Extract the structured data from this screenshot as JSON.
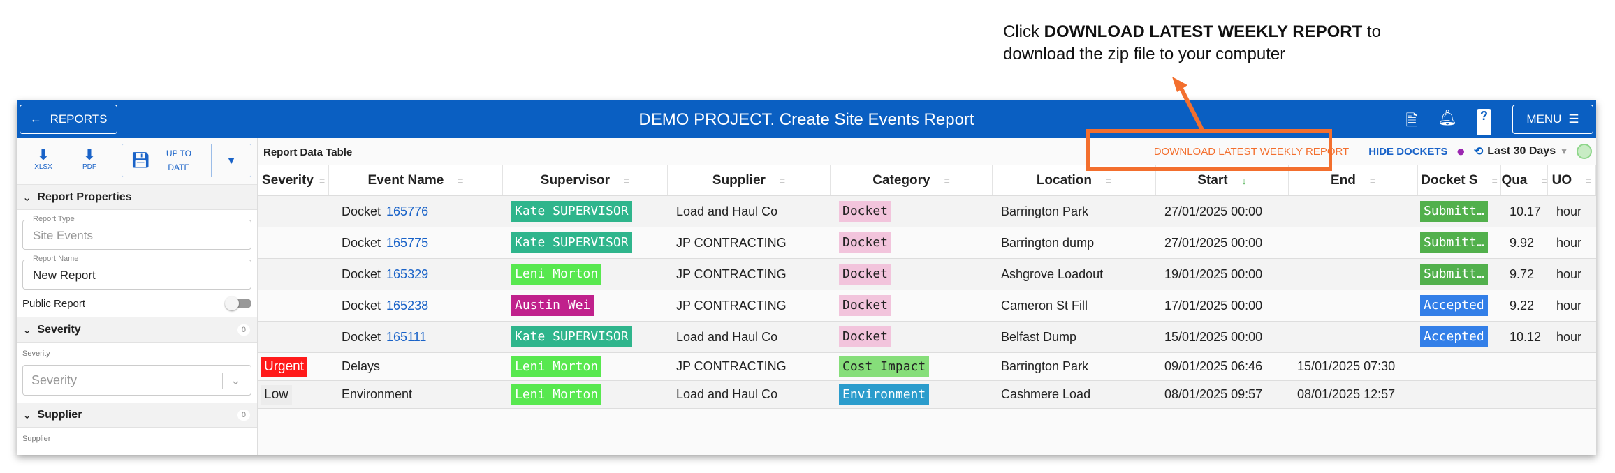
{
  "annotation": {
    "prefix": "Click ",
    "bold": "DOWNLOAD LATEST WEEKLY REPORT",
    "suffix": " to",
    "line2": "download the zip file to your computer",
    "color": "#f36f2e"
  },
  "topbar": {
    "back_label": "REPORTS",
    "title": "DEMO PROJECT. Create Site Events Report",
    "menu_label": "MENU",
    "icons": [
      "document-check-icon",
      "bell-icon",
      "help-icon",
      "hamburger-icon"
    ],
    "color": "#0a5fc2"
  },
  "sidebar": {
    "xlsx": "XLSX",
    "pdf": "PDF",
    "save_label": "UP TO DATE",
    "report_properties": "Report Properties",
    "report_type_label": "Report Type",
    "report_type_value": "Site Events",
    "report_name_label": "Report Name",
    "report_name_value": "New Report",
    "public_report": "Public Report",
    "public_report_on": false,
    "severity_section": "Severity",
    "severity_count": "0",
    "severity_label": "Severity",
    "severity_placeholder": "Severity",
    "supplier_section": "Supplier",
    "supplier_count": "0",
    "supplier_label": "Supplier"
  },
  "main": {
    "title": "Report Data Table",
    "download_weekly": "DOWNLOAD LATEST WEEKLY REPORT",
    "hide_dockets": "HIDE DOCKETS",
    "date_range": "Last 30 Days",
    "columns": [
      "Severity",
      "Event Name",
      "Supervisor",
      "Supplier",
      "Category",
      "Location",
      "Start",
      "End",
      "Docket S",
      "Qua",
      "UO"
    ],
    "rows": [
      {
        "severity": "",
        "event": "Docket",
        "docket": "165776",
        "supervisor": "Kate SUPERVISOR",
        "sup_color": "#2fb58c",
        "sup_text": "#fff",
        "supplier": "Load and Haul Co",
        "category": "Docket",
        "cat_color": "#f2c4dc",
        "cat_text": "#222",
        "location": "Barrington Park",
        "start": "27/01/2025 00:00",
        "end": "",
        "status": "Submitt…",
        "status_color": "#52b04c",
        "qty": "10.17",
        "uom": "hour"
      },
      {
        "severity": "",
        "event": "Docket",
        "docket": "165775",
        "supervisor": "Kate SUPERVISOR",
        "sup_color": "#2fb58c",
        "sup_text": "#fff",
        "supplier": "JP CONTRACTING",
        "category": "Docket",
        "cat_color": "#f2c4dc",
        "cat_text": "#222",
        "location": "Barrington dump",
        "start": "27/01/2025 00:00",
        "end": "",
        "status": "Submitt…",
        "status_color": "#52b04c",
        "qty": "9.92",
        "uom": "hour"
      },
      {
        "severity": "",
        "event": "Docket",
        "docket": "165329",
        "supervisor": "Leni Morton",
        "sup_color": "#58e84f",
        "sup_text": "#fff",
        "supplier": "JP CONTRACTING",
        "category": "Docket",
        "cat_color": "#f2c4dc",
        "cat_text": "#222",
        "location": "Ashgrove Loadout",
        "start": "19/01/2025 00:00",
        "end": "",
        "status": "Submitt…",
        "status_color": "#52b04c",
        "qty": "9.72",
        "uom": "hour"
      },
      {
        "severity": "",
        "event": "Docket",
        "docket": "165238",
        "supervisor": "Austin Wei",
        "sup_color": "#c0218c",
        "sup_text": "#fff",
        "supplier": "JP CONTRACTING",
        "category": "Docket",
        "cat_color": "#f2c4dc",
        "cat_text": "#222",
        "location": "Cameron St Fill",
        "start": "17/01/2025 00:00",
        "end": "",
        "status": "Accepted",
        "status_color": "#337fe8",
        "qty": "9.22",
        "uom": "hour"
      },
      {
        "severity": "",
        "event": "Docket",
        "docket": "165111",
        "supervisor": "Kate SUPERVISOR",
        "sup_color": "#2fb58c",
        "sup_text": "#fff",
        "supplier": "Load and Haul Co",
        "category": "Docket",
        "cat_color": "#f2c4dc",
        "cat_text": "#222",
        "location": "Belfast Dump",
        "start": "15/01/2025 00:00",
        "end": "",
        "status": "Accepted",
        "status_color": "#337fe8",
        "qty": "10.12",
        "uom": "hour"
      },
      {
        "severity": "Urgent",
        "sev_color": "#ff1a1a",
        "sev_text": "#fff",
        "event": "Delays",
        "docket": "",
        "supervisor": "Leni Morton",
        "sup_color": "#58e84f",
        "sup_text": "#fff",
        "supplier": "JP CONTRACTING",
        "category": "Cost Impact",
        "cat_color": "#86de7a",
        "cat_text": "#222",
        "location": "Barrington Park",
        "start": "09/01/2025 06:46",
        "end": "15/01/2025 07:30",
        "status": "",
        "qty": "",
        "uom": ""
      },
      {
        "severity": "Low",
        "sev_color": "#ececec",
        "sev_text": "#222",
        "event": "Environment",
        "docket": "",
        "supervisor": "Leni Morton",
        "sup_color": "#58e84f",
        "sup_text": "#fff",
        "supplier": "Load and Haul Co",
        "category": "Environment",
        "cat_color": "#2b9ccc",
        "cat_text": "#fff",
        "location": "Cashmere Load",
        "start": "08/01/2025 09:57",
        "end": "08/01/2025 12:57",
        "status": "",
        "qty": "",
        "uom": ""
      }
    ]
  }
}
